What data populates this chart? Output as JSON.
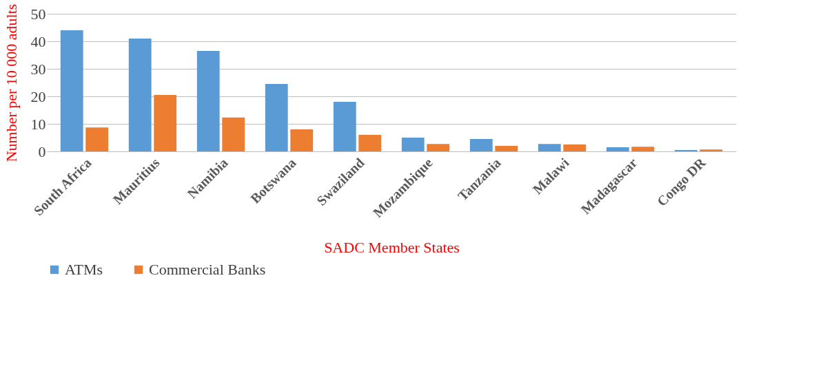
{
  "chart_data": {
    "type": "bar",
    "xlabel": "SADC Member States",
    "ylabel": "Number per 10 000 adults",
    "categories": [
      "South Africa",
      "Mauritius",
      "Namibia",
      "Botswana",
      "Swaziland",
      "Mozambique",
      "Tanzania",
      "Malawi",
      "Madagascar",
      "Congo DR"
    ],
    "series": [
      {
        "name": "ATMs",
        "color": "#5b9bd5",
        "values": [
          44,
          41,
          36.5,
          24.5,
          18,
          5,
          4.5,
          2.7,
          1.5,
          0.5
        ]
      },
      {
        "name": "Commercial Banks",
        "color": "#ed7d31",
        "values": [
          8.7,
          20.5,
          12.3,
          8,
          6,
          2.7,
          2,
          2.5,
          1.7,
          0.7
        ]
      }
    ],
    "ylim": [
      0,
      50
    ],
    "yticks": [
      0,
      10,
      20,
      30,
      40,
      50
    ],
    "grid": "y",
    "legend": "bottom"
  }
}
